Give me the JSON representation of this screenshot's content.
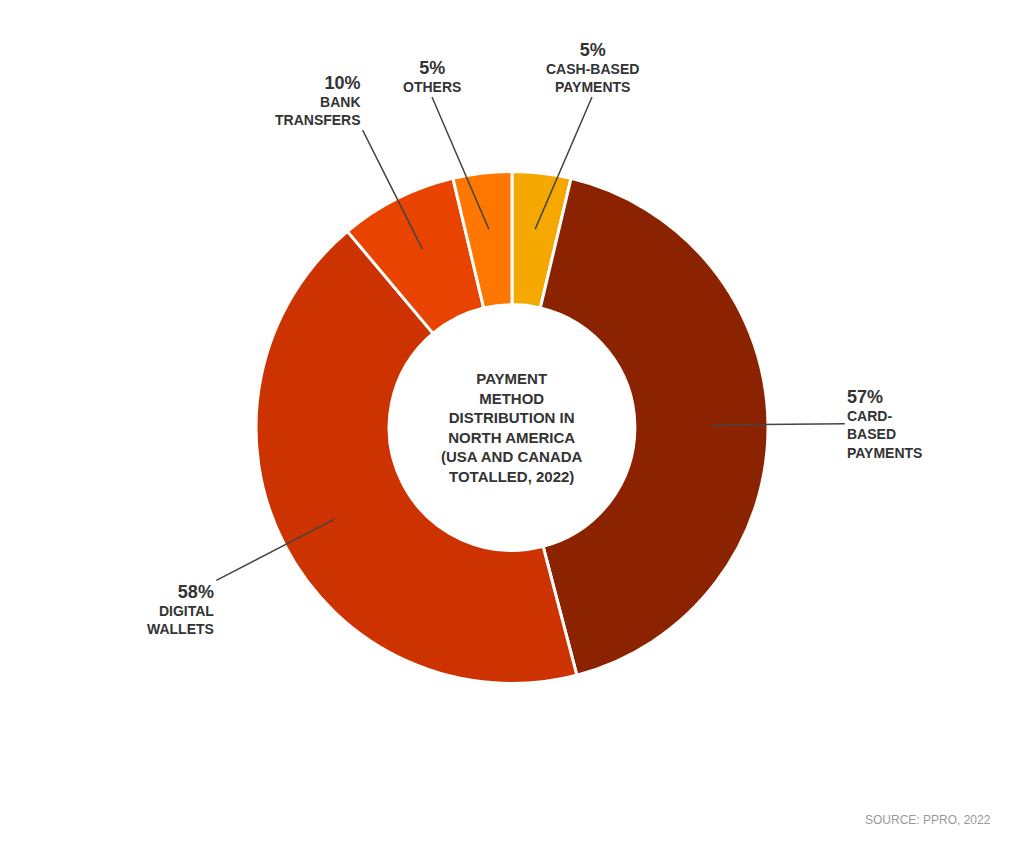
{
  "chart_data": {
    "type": "donut",
    "title": "PAYMENT\nMETHOD\nDISTRIBUTION IN\nNORTH AMERICA\n(USA AND CANADA\nTOTALLED, 2022)",
    "categories": [
      "CASH-BASED\nPAYMENTS",
      "CARD-\nBASED\nPAYMENTS",
      "DIGITAL\nWALLETS",
      "BANK\nTRANSFERS",
      "OTHERS"
    ],
    "values": [
      5,
      57,
      58,
      10,
      5
    ],
    "value_labels": [
      "5%",
      "57%",
      "58%",
      "10%",
      "5%"
    ],
    "colors": [
      "#F5A800",
      "#8B2200",
      "#CC3300",
      "#E84400",
      "#FF7700"
    ],
    "data_labels": true,
    "annotations": [
      "SOURCE: PPRO, 2022"
    ]
  }
}
